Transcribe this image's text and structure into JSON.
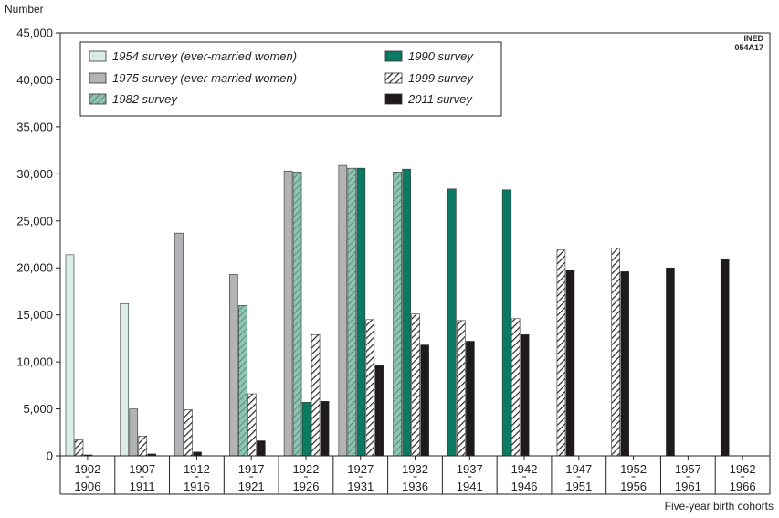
{
  "chart_data": {
    "type": "bar",
    "ylabel": "Number",
    "xlabel": "Five-year birth cohorts",
    "watermark": [
      "INED",
      "054A17"
    ],
    "ylim": [
      0,
      45000
    ],
    "yticks": [
      "0",
      "5,000",
      "10,000",
      "15,000",
      "20,000",
      "25,000",
      "30,000",
      "35,000",
      "40,000",
      "45,000"
    ],
    "ytick_values": [
      0,
      5000,
      10000,
      15000,
      20000,
      25000,
      30000,
      35000,
      40000,
      45000
    ],
    "categories": [
      [
        "1902",
        "1906"
      ],
      [
        "1907",
        "1911"
      ],
      [
        "1912",
        "1916"
      ],
      [
        "1917",
        "1921"
      ],
      [
        "1922",
        "1926"
      ],
      [
        "1927",
        "1931"
      ],
      [
        "1932",
        "1936"
      ],
      [
        "1937",
        "1941"
      ],
      [
        "1942",
        "1946"
      ],
      [
        "1947",
        "1951"
      ],
      [
        "1952",
        "1956"
      ],
      [
        "1957",
        "1961"
      ],
      [
        "1962",
        "1966"
      ]
    ],
    "series": [
      {
        "name": "1954 survey (ever-married women)",
        "color": "#d9ede6",
        "pattern": "solid",
        "values": [
          21400,
          16200,
          null,
          null,
          null,
          null,
          null,
          null,
          null,
          null,
          null,
          null,
          null
        ]
      },
      {
        "name": "1975 survey (ever-married women)",
        "color": "#b3b3b6",
        "pattern": "solid",
        "values": [
          null,
          5000,
          23700,
          19300,
          30300,
          30900,
          null,
          null,
          null,
          null,
          null,
          null,
          null
        ]
      },
      {
        "name": "1982 survey",
        "color": "#8fc4b3",
        "pattern": "hatch",
        "values": [
          null,
          null,
          null,
          16000,
          30200,
          30600,
          30200,
          null,
          null,
          null,
          null,
          null,
          null
        ]
      },
      {
        "name": "1990 survey",
        "color": "#0a7a62",
        "pattern": "solid",
        "values": [
          null,
          null,
          null,
          null,
          5700,
          30600,
          30500,
          28400,
          28300,
          null,
          null,
          null,
          null
        ]
      },
      {
        "name": "1999 survey",
        "color": "#2a2a2a",
        "pattern": "hatch",
        "values": [
          1700,
          2100,
          4900,
          6600,
          12900,
          14500,
          15100,
          14400,
          14600,
          21900,
          22100,
          null,
          null
        ]
      },
      {
        "name": "2011 survey",
        "color": "#1f1a1c",
        "pattern": "solid",
        "values": [
          100,
          200,
          400,
          1600,
          5800,
          9600,
          11800,
          12200,
          12900,
          19800,
          19600,
          20000,
          20900
        ]
      }
    ],
    "legend": {
      "placement": "top-left",
      "columns": 2
    },
    "grid": {
      "y": false,
      "x": false
    }
  }
}
